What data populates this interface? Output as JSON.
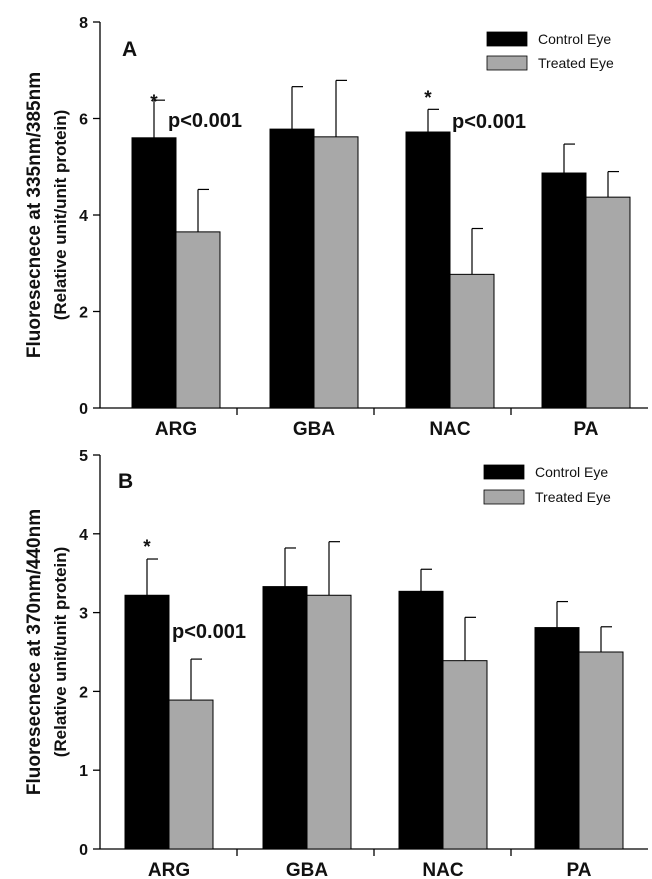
{
  "chart_data": [
    {
      "type": "bar",
      "panel_label": "A",
      "categories": [
        "ARG",
        "GBA",
        "NAC",
        "PA"
      ],
      "series": [
        {
          "name": "Control Eye",
          "color": "#000000",
          "values": [
            5.6,
            5.78,
            5.72,
            4.87
          ],
          "errors": [
            0.78,
            0.88,
            0.47,
            0.6
          ]
        },
        {
          "name": "Treated Eye",
          "color": "#a8a8a8",
          "values": [
            3.65,
            5.62,
            2.77,
            4.37
          ],
          "errors": [
            0.88,
            1.17,
            0.95,
            0.53
          ]
        }
      ],
      "ylabel_line1": "Fluoresecnece at 335nm/385nm",
      "ylabel_line2": "(Relative unit/unit protein)",
      "ylim": [
        0,
        8
      ],
      "yticks": [
        0,
        2,
        4,
        6,
        8
      ],
      "legend_position": "top-right",
      "annotations": [
        {
          "category": "ARG",
          "star": "*",
          "text": "p<0.001"
        },
        {
          "category": "NAC",
          "star": "*",
          "text": "p<0.001"
        }
      ]
    },
    {
      "type": "bar",
      "panel_label": "B",
      "categories": [
        "ARG",
        "GBA",
        "NAC",
        "PA"
      ],
      "series": [
        {
          "name": "Control Eye",
          "color": "#000000",
          "values": [
            3.22,
            3.33,
            3.27,
            2.81
          ],
          "errors": [
            0.46,
            0.49,
            0.28,
            0.33
          ]
        },
        {
          "name": "Treated Eye",
          "color": "#a8a8a8",
          "values": [
            1.89,
            3.22,
            2.39,
            2.5
          ],
          "errors": [
            0.52,
            0.68,
            0.55,
            0.32
          ]
        }
      ],
      "ylabel_line1": "Fluoresecnece at 370nm/440nm",
      "ylabel_line2": "(Relative unit/unit protein)",
      "ylim": [
        0,
        5
      ],
      "yticks": [
        0,
        1,
        2,
        3,
        4,
        5
      ],
      "legend_position": "top-right",
      "annotations": [
        {
          "category": "ARG",
          "star": "*",
          "text": "p<0.001"
        }
      ]
    }
  ]
}
